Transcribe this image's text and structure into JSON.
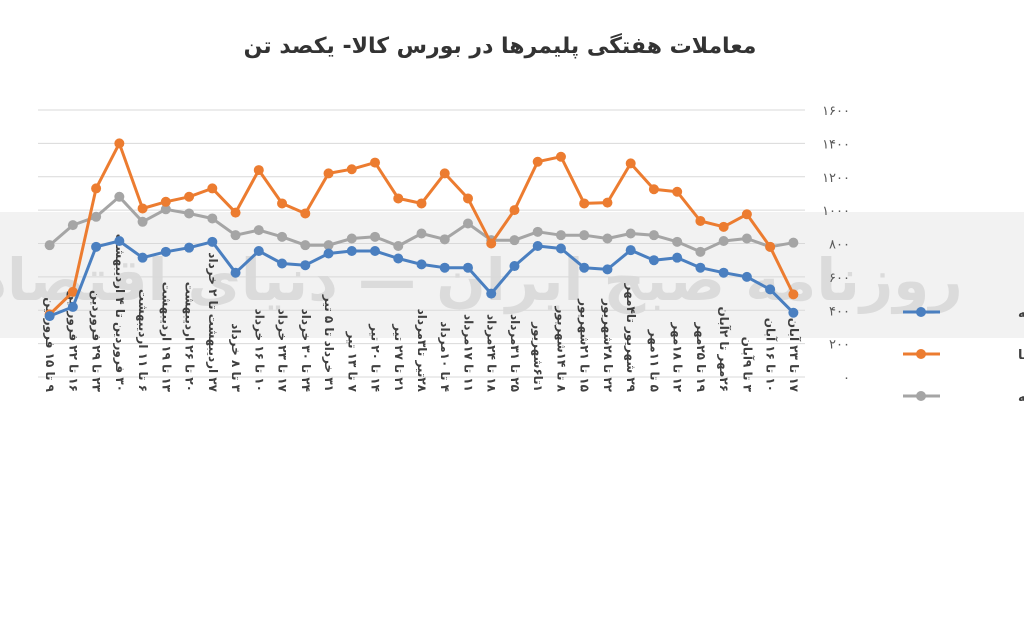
{
  "chart_data": {
    "type": "line",
    "title": "معاملات هفتگی پلیمرها در بورس کالا- یکصد تن",
    "ylim": [
      0,
      1600
    ],
    "y_ticks": [
      "۰",
      "۲۰۰",
      "۴۰۰",
      "۶۰۰",
      "۸۰۰",
      "۱۰۰۰",
      "۱۲۰۰",
      "۱۴۰۰",
      "۱۶۰۰"
    ],
    "grid": true,
    "legend_position": "right",
    "watermark": "روزنامه صبح ایران — دنیای اقتصاد",
    "categories": [
      "۹ تا ۱۵ فروردین",
      "۱۶ تا ۲۲ فروردین",
      "۲۳ تا ۲۹ فروردین",
      "۳۰ فروردین تا ۴ اردیبهشت",
      "۶ تا ۱۱ اردیبهشت",
      "۱۳ تا ۱۹ اردیبهشت",
      "۲۰ تا ۲۶ اردیبهشت",
      "۲۷ اردیبهشت تا ۲ خرداد",
      "۳ تا ۸ خرداد",
      "۱۰ تا ۱۶ خرداد",
      "۱۷ تا ۲۳ خرداد",
      "۲۴ تا ۳۰ خرداد",
      "۳۱ خرداد تا ۵ تیر",
      "۷ تا ۱۳ تیر",
      "۱۴ تا ۲۰ تیر",
      "۲۱ تا ۲۷ تیر",
      "۲۸تیر تا۳مرداد",
      "۴ تا ۱۰مرداد",
      "۱۱ تا ۱۷مرداد",
      "۱۸ تا ۲۴مرداد",
      "۲۵ تا ۳۱مرداد",
      "۱تا۶شهریور",
      "۸ تا ۱۴شهریور",
      "۱۵ تا ۲۱شهریور",
      "۲۲ تا ۲۸شهریور",
      "۲۹ شهریور تا۴مهر",
      "۵ تا ۱۱مهر",
      "۱۲ تا ۱۸مهر",
      "۱۹ تا ۲۵مهر",
      "۲۶مهر تا ۲آبان",
      "۳ تا ۹آبان",
      "۱۰ تا ۱۶ آبان",
      "۱۷ تا ۲۳ آبان"
    ],
    "series": [
      {
        "name": "حجم معامله",
        "color": "#4a7fc0",
        "values": [
          365,
          420,
          780,
          815,
          715,
          750,
          775,
          810,
          625,
          755,
          680,
          670,
          740,
          755,
          755,
          710,
          675,
          655,
          655,
          500,
          665,
          785,
          770,
          655,
          645,
          760,
          700,
          715,
          655,
          625,
          600,
          525,
          385
        ]
      },
      {
        "name": "تقاضا",
        "color": "#ec7c30",
        "values": [
          375,
          510,
          1130,
          1400,
          1010,
          1050,
          1080,
          1130,
          985,
          1240,
          1040,
          980,
          1220,
          1245,
          1285,
          1070,
          1040,
          1220,
          1070,
          800,
          1000,
          1290,
          1320,
          1040,
          1045,
          1280,
          1125,
          1110,
          935,
          900,
          975,
          780,
          495
        ]
      },
      {
        "name": "عرضه",
        "color": "#a5a5a5",
        "values": [
          790,
          910,
          960,
          1080,
          930,
          1005,
          980,
          950,
          850,
          880,
          840,
          790,
          790,
          830,
          840,
          785,
          860,
          825,
          920,
          820,
          820,
          870,
          850,
          850,
          830,
          860,
          850,
          810,
          750,
          815,
          830,
          780,
          805
        ]
      }
    ]
  }
}
